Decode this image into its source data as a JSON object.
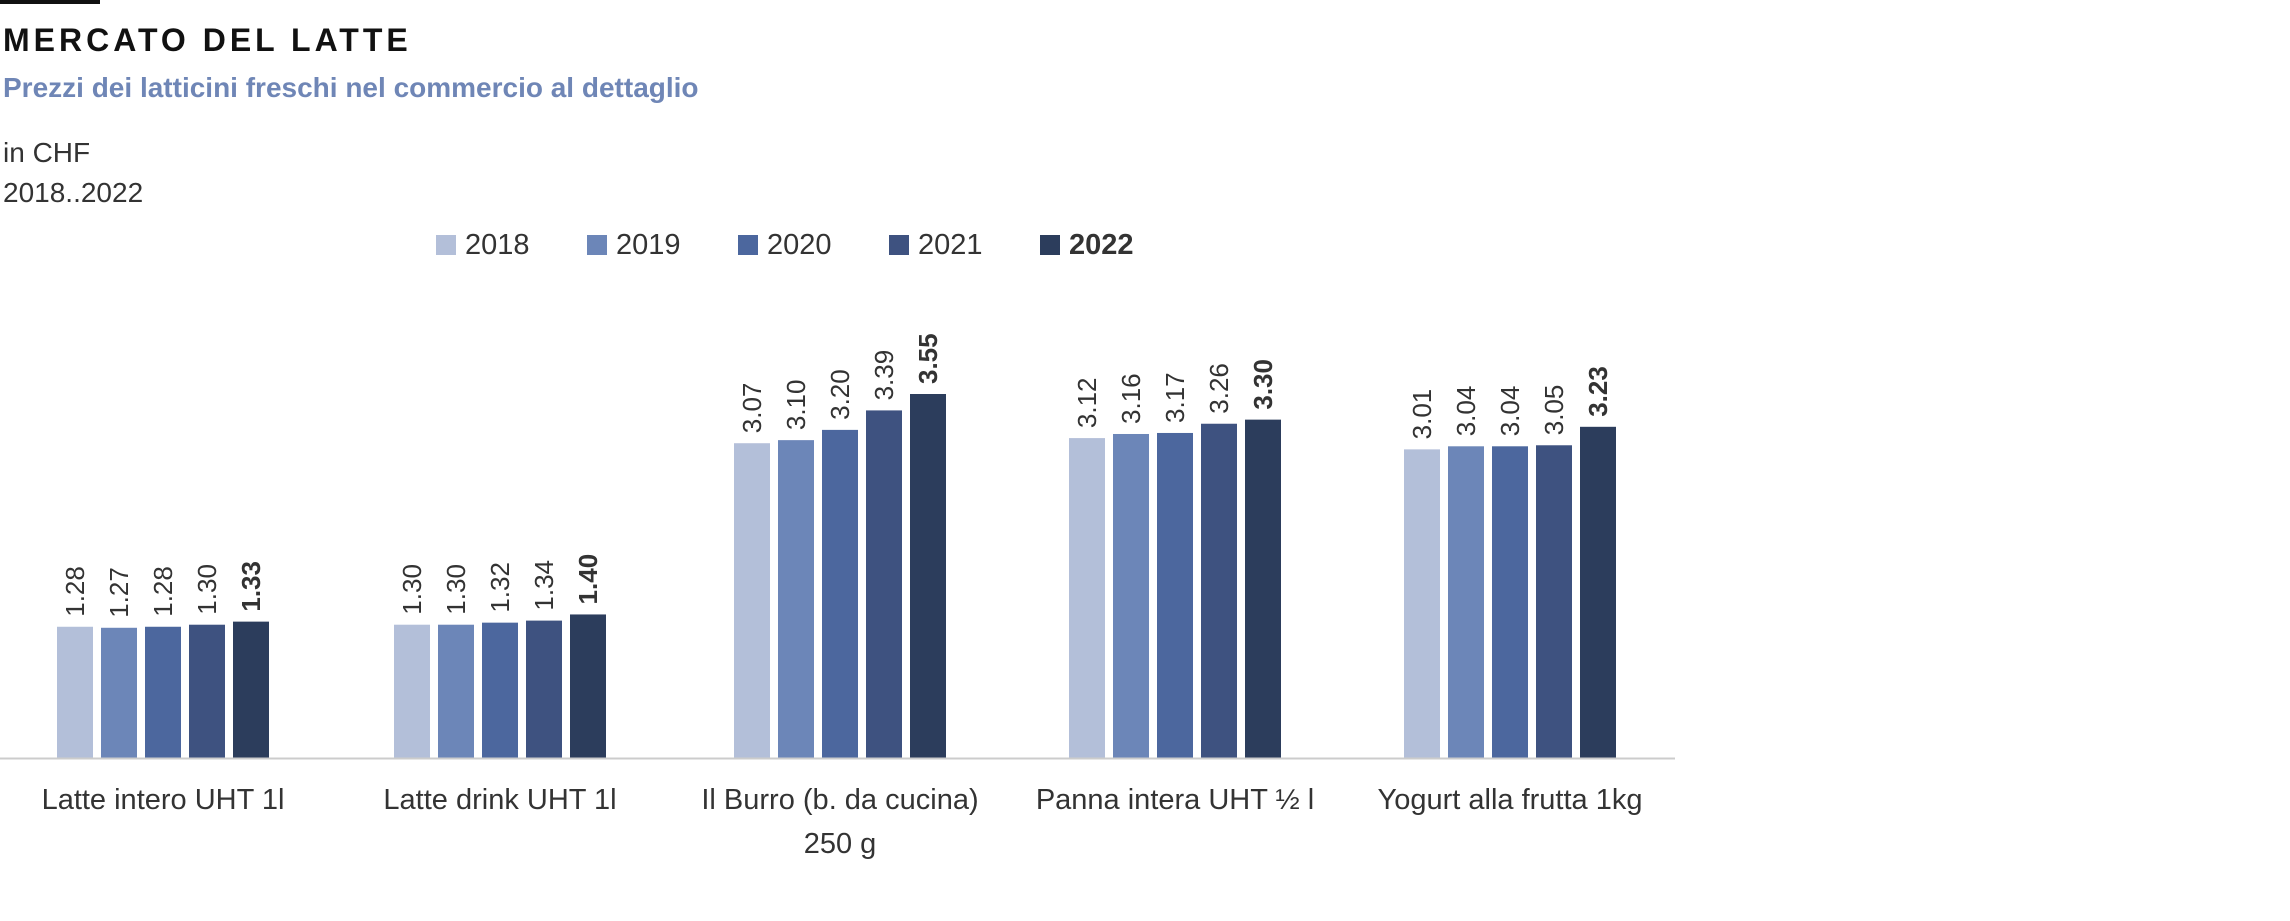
{
  "header": {
    "title": "MERCATO DEL LATTE",
    "subtitle": "Prezzi dei latticini freschi nel commercio al dettaglio",
    "unit": "in CHF",
    "range": "2018..2022"
  },
  "colors": {
    "series": [
      "#b3bfd9",
      "#6c86b8",
      "#4c679e",
      "#3e5280",
      "#2c3d5c"
    ],
    "axis": "#cccccc",
    "text": "#333333"
  },
  "chart_data": {
    "type": "bar",
    "categories": [
      [
        "Latte intero UHT 1l"
      ],
      [
        "Latte drink  UHT 1l"
      ],
      [
        "Il Burro (b. da cucina)",
        "250 g"
      ],
      [
        "Panna intera UHT ½ l"
      ],
      [
        "Yogurt alla frutta 1kg"
      ]
    ],
    "series": [
      {
        "name": "2018",
        "values": [
          1.28,
          1.3,
          3.07,
          3.12,
          3.01
        ]
      },
      {
        "name": "2019",
        "values": [
          1.27,
          1.3,
          3.1,
          3.16,
          3.04
        ]
      },
      {
        "name": "2020",
        "values": [
          1.28,
          1.32,
          3.2,
          3.17,
          3.04
        ]
      },
      {
        "name": "2021",
        "values": [
          1.3,
          1.34,
          3.39,
          3.26,
          3.05
        ]
      },
      {
        "name": "2022",
        "values": [
          1.33,
          1.4,
          3.55,
          3.3,
          3.23
        ]
      }
    ],
    "value_labels": [
      [
        "1.28",
        "1.30",
        "3.07",
        "3.12",
        "3.01"
      ],
      [
        "1.27",
        "1.30",
        "3.10",
        "3.16",
        "3.04"
      ],
      [
        "1.28",
        "1.32",
        "3.20",
        "3.17",
        "3.04"
      ],
      [
        "1.30",
        "1.34",
        "3.39",
        "3.26",
        "3.05"
      ],
      [
        "1.33",
        "1.40",
        "3.55",
        "3.30",
        "3.23"
      ]
    ],
    "highlight_series": "2022",
    "ylim": [
      0,
      3.55
    ],
    "legend": "top-center",
    "grid": false,
    "xlabel": "",
    "ylabel": ""
  }
}
